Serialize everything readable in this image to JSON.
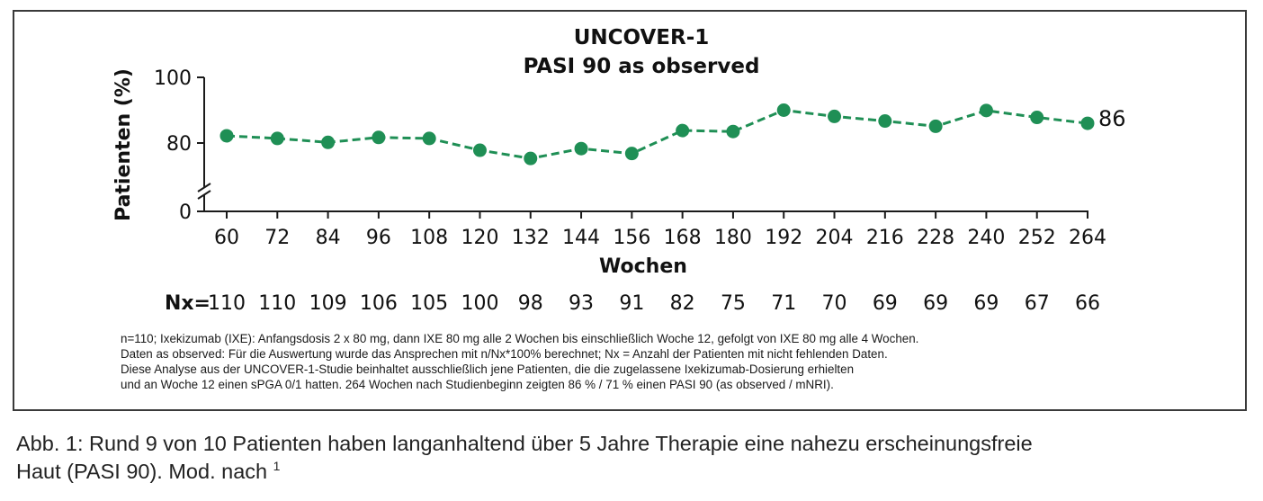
{
  "chart_data": {
    "type": "line",
    "title": "UNCOVER-1",
    "subtitle": "PASI 90 as observed",
    "xlabel": "Wochen",
    "ylabel": "Patienten (%)",
    "y_ticks": [
      "0",
      "80",
      "100"
    ],
    "y_axis_break": true,
    "ylim_upper_segment": [
      80,
      100
    ],
    "categories": [
      "60",
      "72",
      "84",
      "96",
      "108",
      "120",
      "132",
      "144",
      "156",
      "168",
      "180",
      "192",
      "204",
      "216",
      "228",
      "240",
      "252",
      "264"
    ],
    "series": [
      {
        "values": [
          82.2,
          81.4,
          80.2,
          81.7,
          81.4,
          77.8,
          75.3,
          78.3,
          76.8,
          83.8,
          83.5,
          90.0,
          88.1,
          86.7,
          85.1,
          89.9,
          87.8,
          86.0
        ],
        "color": "#1f8f55",
        "line_style": "dashed",
        "marker": "circle"
      }
    ],
    "end_label": "86",
    "nx_prefix": "Nx=",
    "nx_values": [
      "110",
      "110",
      "109",
      "106",
      "105",
      "100",
      "98",
      "93",
      "91",
      "82",
      "75",
      "71",
      "70",
      "69",
      "69",
      "69",
      "67",
      "66"
    ],
    "grid": false,
    "legend": "none"
  },
  "footnotes": [
    "n=110; Ixekizumab (IXE): Anfangsdosis 2 x 80 mg, dann IXE 80 mg alle 2 Wochen bis einschließlich Woche 12, gefolgt von IXE 80 mg alle 4 Wochen.",
    "Daten as observed: Für die Auswertung wurde das Ansprechen mit n/Nx*100% berechnet; Nx = Anzahl der Patienten mit nicht fehlenden Daten.",
    "Diese Analyse aus der UNCOVER-1-Studie beinhaltet ausschließlich jene Patienten, die die zugelassene Ixekizumab-Dosierung erhielten",
    "und an Woche 12 einen sPGA 0/1 hatten. 264 Wochen nach Studienbeginn zeigten 86 % / 71 % einen PASI 90 (as observed / mNRI)."
  ],
  "caption": {
    "line1": "Abb. 1: Rund 9 von 10 Patienten haben langanhaltend über 5 Jahre Therapie eine nahezu erscheinungsfreie",
    "line2": "Haut (PASI 90). Mod. nach",
    "superscript": "1"
  },
  "colors": {
    "series": "#1f8f55",
    "axis": "#1a1a1a",
    "border": "#3a3a3a"
  }
}
